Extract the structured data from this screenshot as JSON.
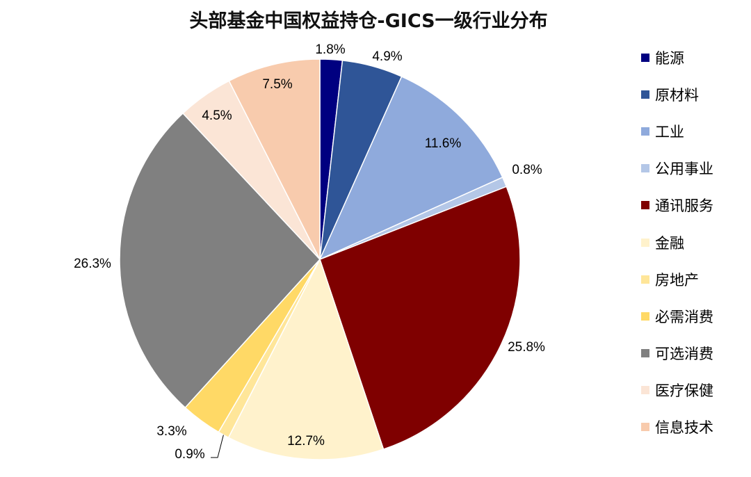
{
  "chart_data": {
    "type": "pie",
    "title": "头部基金中国权益持仓-GICS一级行业分布",
    "legend_position": "right",
    "start": "top",
    "direction": "clockwise",
    "slices": [
      {
        "name": "能源",
        "value": 1.8,
        "label": "1.8%",
        "color": "#000080"
      },
      {
        "name": "原材料",
        "value": 4.9,
        "label": "4.9%",
        "color": "#2F5597"
      },
      {
        "name": "工业",
        "value": 11.6,
        "label": "11.6%",
        "color": "#8FAADC"
      },
      {
        "name": "公用事业",
        "value": 0.8,
        "label": "0.8%",
        "color": "#B4C7E7"
      },
      {
        "name": "通讯服务",
        "value": 25.8,
        "label": "25.8%",
        "color": "#7F0000"
      },
      {
        "name": "金融",
        "value": 12.7,
        "label": "12.7%",
        "color": "#FFF2CC"
      },
      {
        "name": "房地产",
        "value": 0.9,
        "label": "0.9%",
        "color": "#FFE699"
      },
      {
        "name": "必需消费",
        "value": 3.3,
        "label": "3.3%",
        "color": "#FFD966"
      },
      {
        "name": "可选消费",
        "value": 26.3,
        "label": "26.3%",
        "color": "#808080"
      },
      {
        "name": "医疗保健",
        "value": 4.5,
        "label": "4.5%",
        "color": "#FBE5D6"
      },
      {
        "name": "信息技术",
        "value": 7.5,
        "label": "7.5%",
        "color": "#F8CBAD"
      }
    ]
  }
}
